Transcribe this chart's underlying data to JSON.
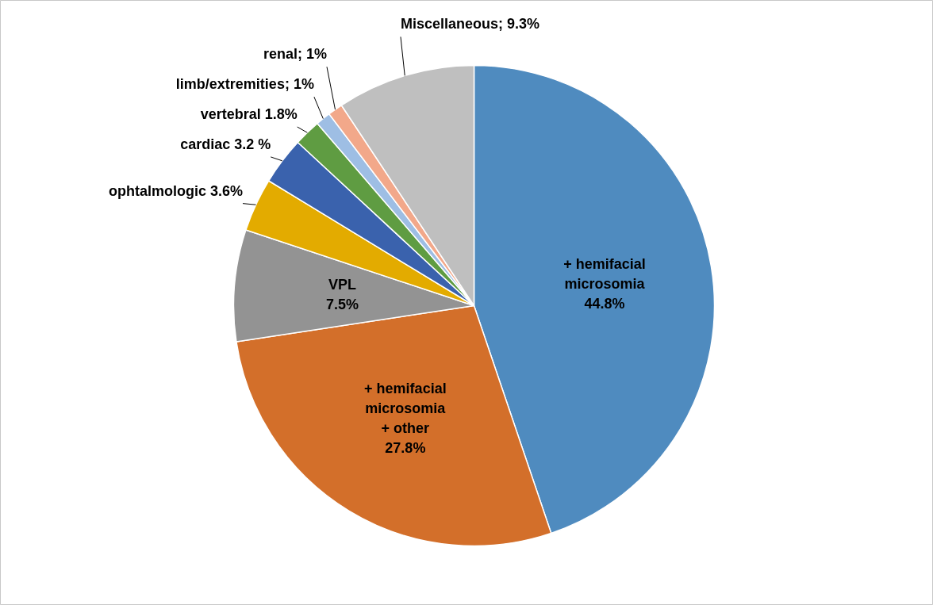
{
  "chart_data": {
    "type": "pie",
    "categories": [
      "+ hemifacial\nmicrosomia",
      "+ hemifacial\nmicrosomia\n+ other",
      "VPL",
      "ophtalmologic",
      "cardiac",
      "vertebral",
      "limb/extremities",
      "renal",
      "Miscellaneous"
    ],
    "values": [
      44.8,
      27.8,
      7.5,
      3.6,
      3.2,
      1.8,
      1,
      1,
      9.3
    ],
    "colors": [
      "#4f8bbf",
      "#d36f2a",
      "#939393",
      "#e3ab00",
      "#3a62ad",
      "#5f9c42",
      "#9ebee4",
      "#f2a88a",
      "#bfbfbf"
    ],
    "value_labels": [
      "\n44.8%",
      "\n27.8%",
      "\n7.5%",
      " 3.6%",
      " 3.2 %",
      " 1.8%",
      "; 1%",
      "; 1%",
      "; 9.3%"
    ]
  }
}
